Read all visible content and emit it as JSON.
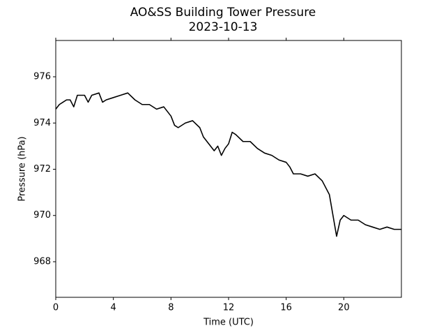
{
  "chart_data": {
    "type": "line",
    "title": "AO&SS Building Tower Pressure",
    "subtitle": "2023-10-13",
    "x_label": "Time (UTC)",
    "y_label": "Pressure (hPa)",
    "xlim": [
      0,
      24
    ],
    "xticks": [
      0,
      4,
      8,
      12,
      16,
      20
    ],
    "ylim": [
      966.46,
      977.57
    ],
    "yticks": [
      968,
      970,
      972,
      974,
      976
    ],
    "grid": false,
    "series": [
      {
        "name": "Pressure",
        "color": "#000000",
        "x": [
          0,
          0.25,
          0.5,
          0.75,
          1.0,
          1.25,
          1.5,
          2.0,
          2.25,
          2.5,
          3.0,
          3.25,
          3.5,
          4.0,
          4.5,
          5.0,
          5.5,
          6.0,
          6.5,
          7.0,
          7.5,
          8.0,
          8.25,
          8.5,
          9.0,
          9.5,
          10.0,
          10.25,
          10.5,
          11.0,
          11.25,
          11.5,
          11.75,
          12.0,
          12.25,
          12.5,
          13.0,
          13.5,
          14.0,
          14.5,
          15.0,
          15.5,
          16.0,
          16.25,
          16.5,
          17.0,
          17.5,
          18.0,
          18.5,
          19.0,
          19.25,
          19.5,
          19.75,
          20.0,
          20.5,
          21.0,
          21.5,
          22.0,
          22.5,
          23.0,
          23.5,
          24
        ],
        "values": [
          974.6,
          974.8,
          974.9,
          975.0,
          975.0,
          974.7,
          975.2,
          975.2,
          974.9,
          975.2,
          975.3,
          974.9,
          975.0,
          975.1,
          975.2,
          975.3,
          975.0,
          974.8,
          974.8,
          974.6,
          974.7,
          974.3,
          973.9,
          973.8,
          974.0,
          974.1,
          973.8,
          973.4,
          973.2,
          972.8,
          973.0,
          972.6,
          972.9,
          973.1,
          973.6,
          973.5,
          973.2,
          973.2,
          972.9,
          972.7,
          972.6,
          972.4,
          972.3,
          972.1,
          971.8,
          971.8,
          971.7,
          971.8,
          971.5,
          970.9,
          970.0,
          969.1,
          969.8,
          970.0,
          969.8,
          969.8,
          969.6,
          969.5,
          969.4,
          969.5,
          969.4,
          969.4
        ]
      }
    ]
  }
}
